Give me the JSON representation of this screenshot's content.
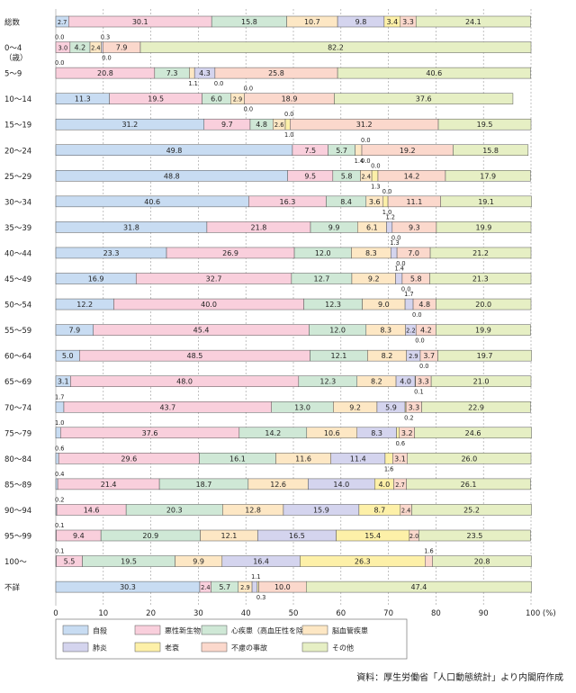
{
  "chart_data": {
    "type": "bar",
    "orientation": "horizontal",
    "stacked": true,
    "xlim": [
      0,
      100
    ],
    "x_ticks": [
      0,
      10,
      20,
      30,
      40,
      50,
      60,
      70,
      80,
      90,
      "100 (%)"
    ],
    "grid": true,
    "legend_position": "bottom",
    "categories": [
      "総数",
      "0～4\n（歳）",
      "5～9",
      "10～14",
      "15～19",
      "20～24",
      "25～29",
      "30～34",
      "35～39",
      "40～44",
      "45～49",
      "50～54",
      "55～59",
      "60～64",
      "65～69",
      "70～74",
      "75～79",
      "80～84",
      "85～89",
      "90～94",
      "95～99",
      "100～",
      "不詳"
    ],
    "series": [
      {
        "name": "自殺",
        "color": "#c8dcf2",
        "values": [
          2.7,
          0.0,
          0.0,
          11.3,
          31.2,
          49.8,
          48.8,
          40.6,
          31.8,
          23.3,
          16.9,
          12.2,
          7.9,
          5.0,
          3.1,
          1.7,
          1.0,
          0.6,
          0.4,
          0.2,
          0.1,
          0.1,
          30.3
        ]
      },
      {
        "name": "悪性新生物",
        "color": "#f9cfdc",
        "values": [
          30.1,
          3.0,
          20.8,
          19.5,
          9.7,
          7.5,
          9.5,
          16.3,
          21.8,
          26.9,
          32.7,
          40.0,
          45.4,
          48.5,
          48.0,
          43.7,
          37.6,
          29.6,
          21.4,
          14.6,
          9.4,
          5.5,
          2.4
        ]
      },
      {
        "name": "心疾患（高血圧性を除く）",
        "color": "#cfe8d6",
        "values": [
          15.8,
          4.2,
          7.3,
          6.0,
          4.8,
          5.7,
          5.8,
          8.4,
          9.9,
          12.0,
          12.7,
          12.3,
          12.0,
          12.1,
          12.3,
          13.0,
          14.2,
          16.1,
          18.7,
          20.3,
          20.9,
          19.5,
          5.7
        ]
      },
      {
        "name": "脳血管疾患",
        "color": "#fde7c4",
        "values": [
          10.7,
          2.4,
          1.1,
          2.9,
          2.6,
          1.4,
          2.4,
          3.6,
          6.1,
          8.3,
          9.2,
          9.0,
          8.3,
          8.2,
          8.2,
          9.2,
          10.6,
          11.6,
          12.6,
          12.8,
          12.1,
          9.9,
          2.9
        ]
      },
      {
        "name": "肺炎",
        "color": "#d4d4ee",
        "values": [
          9.8,
          0.3,
          4.3,
          0.0,
          0.0,
          0.0,
          0.0,
          0.0,
          1.2,
          1.3,
          1.4,
          1.7,
          2.2,
          2.9,
          4.0,
          5.9,
          8.3,
          11.4,
          14.0,
          15.9,
          16.5,
          16.4,
          1.1
        ]
      },
      {
        "name": "老衰",
        "color": "#fdf0a8",
        "values": [
          3.4,
          0.0,
          0.0,
          0.0,
          1.0,
          0.0,
          1.3,
          1.0,
          0.0,
          0.0,
          0.0,
          0.0,
          0.0,
          0.0,
          0.1,
          0.2,
          0.6,
          1.6,
          4.0,
          8.7,
          15.4,
          26.3,
          0.3
        ]
      },
      {
        "name": "不慮の事故",
        "color": "#fbd8cc",
        "values": [
          3.3,
          7.9,
          25.8,
          18.9,
          31.2,
          19.2,
          14.2,
          11.1,
          9.3,
          7.0,
          5.8,
          4.8,
          4.2,
          3.7,
          3.3,
          3.3,
          3.2,
          3.1,
          2.7,
          2.4,
          2.0,
          1.6,
          10.0
        ]
      },
      {
        "name": "その他",
        "color": "#e6efc4",
        "values": [
          24.1,
          82.2,
          40.6,
          37.6,
          19.5,
          15.8,
          17.9,
          19.1,
          19.9,
          21.2,
          21.3,
          20.0,
          19.9,
          19.7,
          21.0,
          22.9,
          24.6,
          26.0,
          26.1,
          25.2,
          23.5,
          20.8,
          47.4
        ]
      }
    ]
  },
  "source": "資料：厚生労働省「人口動態統計」より内閣府作成"
}
